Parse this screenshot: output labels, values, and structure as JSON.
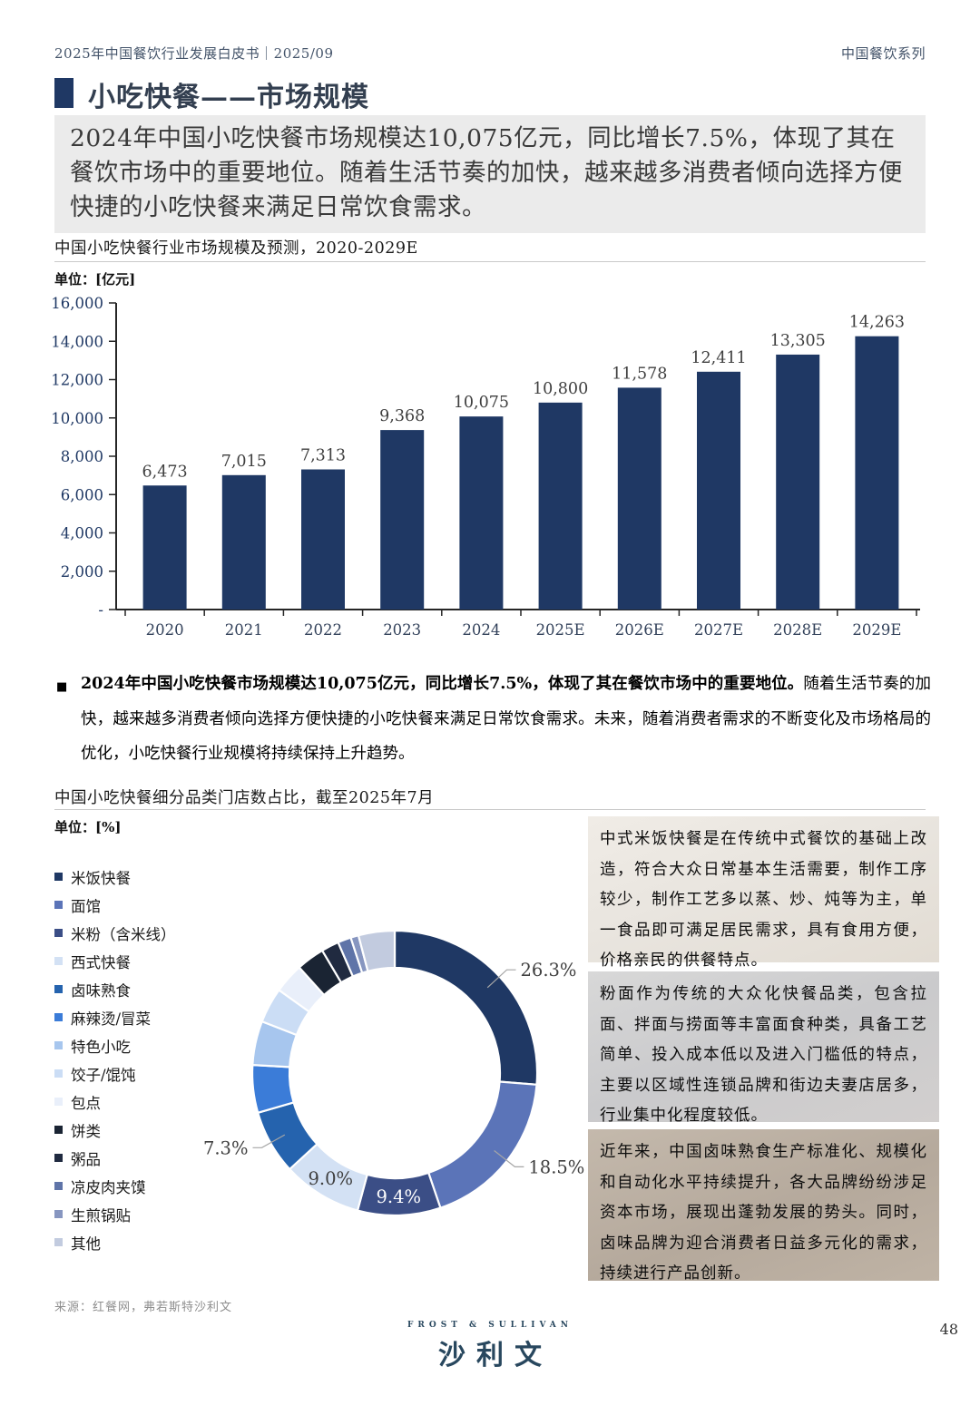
{
  "header": {
    "left": "2025年中国餐饮行业发展白皮书｜2025/09",
    "right": "中国餐饮系列"
  },
  "title": "小吃快餐——市场规模",
  "summary": "2024年中国小吃快餐市场规模达10,075亿元，同比增长7.5%，体现了其在餐饮市场中的重要地位。随着生活节奏的加快，越来越多消费者倾向选择方便快捷的小吃快餐来满足日常饮食需求。",
  "bullet": {
    "lead": "2024年中国小吃快餐市场规模达10,075亿元，同比增长7.5%，体现了其在餐饮市场中的重要地位。",
    "rest": "随着生活节奏的加快，越来越多消费者倾向选择方便快捷的小吃快餐来满足日常饮食需求。未来，随着消费者需求的不断变化及市场格局的优化，小吃快餐行业规模将持续保持上升趋势。"
  },
  "chart_data": [
    {
      "type": "bar",
      "title": "中国小吃快餐行业市场规模及预测，2020-2029E",
      "unit": "单位：[亿元]",
      "categories": [
        "2020",
        "2021",
        "2022",
        "2023",
        "2024",
        "2025E",
        "2026E",
        "2027E",
        "2028E",
        "2029E"
      ],
      "values": [
        6473,
        7015,
        7313,
        9368,
        10075,
        10800,
        11578,
        12411,
        13305,
        14263
      ],
      "value_labels": [
        "6,473",
        "7,015",
        "7,313",
        "9,368",
        "10,075",
        "10,800",
        "11,578",
        "12,411",
        "13,305",
        "14,263"
      ],
      "ylim": [
        0,
        16000
      ],
      "ytick_labels_top_down": [
        "16,000",
        "14,000",
        "12,000",
        "10,000",
        "8,000",
        "6,000",
        "4,000",
        "2,000",
        "-"
      ],
      "bar_color": "#1F3864",
      "grid": false,
      "legend": "none"
    },
    {
      "type": "pie",
      "donut": true,
      "title": "中国小吃快餐细分品类门店数占比，截至2025年7月",
      "unit": "单位：[%]",
      "segments": [
        {
          "name": "米饭快餐",
          "value": 26.3,
          "label": "26.3%",
          "color": "#1F3864",
          "label_style": "outside"
        },
        {
          "name": "面馆",
          "value": 18.5,
          "label": "18.5%",
          "color": "#5B74B8",
          "label_style": "outside"
        },
        {
          "name": "米粉（含米线）",
          "value": 9.4,
          "label": "9.4%",
          "color": "#3B4E86",
          "label_style": "inside-white"
        },
        {
          "name": "西式快餐",
          "value": 9.0,
          "label": "9.0%",
          "color": "#D3E1F4",
          "label_style": "inside-dark"
        },
        {
          "name": "卤味熟食",
          "value": 7.3,
          "label": "7.3%",
          "color": "#2563AE",
          "label_style": "outside"
        },
        {
          "name": "麻辣烫/冒菜",
          "value": 5.4,
          "color": "#3B7CD8"
        },
        {
          "name": "特色小吃",
          "value": 5.0,
          "color": "#A7C6EE"
        },
        {
          "name": "饺子/馄饨",
          "value": 4.0,
          "color": "#CBDDF5"
        },
        {
          "name": "包点",
          "value": 3.4,
          "color": "#E9EFFA"
        },
        {
          "name": "饼类",
          "value": 3.2,
          "color": "#1A2433"
        },
        {
          "name": "粥品",
          "value": 2.0,
          "color": "#202A40"
        },
        {
          "name": "凉皮肉夹馍",
          "value": 1.5,
          "color": "#5F74A8"
        },
        {
          "name": "生煎锅贴",
          "value": 0.9,
          "color": "#8796C0"
        },
        {
          "name": "其他",
          "value": 4.1,
          "color": "#C2CBDF"
        }
      ]
    }
  ],
  "info_boxes": [
    {
      "text": "中式米饭快餐是在传统中式餐饮的基础上改造，符合大众日常基本生活需要，制作工序较少，制作工艺多以蒸、炒、炖等为主，单一食品即可满足居民需求，具有食用方便，价格亲民的供餐特点。"
    },
    {
      "text": "粉面作为传统的大众化快餐品类，包含拉面、拌面与捞面等丰富面食种类，具备工艺简单、投入成本低以及进入门槛低的特点，主要以区域性连锁品牌和街边夫妻店居多，行业集中化程度较低。"
    },
    {
      "text": "近年来，中国卤味熟食生产标准化、规模化和自动化水平持续提升，各大品牌纷纷涉足资本市场，展现出蓬勃发展的势头。同时，卤味品牌为迎合消费者日益多元化的需求，持续进行产品创新。"
    }
  ],
  "footer": {
    "source": "来源：红餐网，弗若斯特沙利文",
    "page_number": "48",
    "logo_top": "FROST & SULLIVAN",
    "logo_main": "沙利文"
  },
  "colors": {
    "accent": "#1F3864",
    "heading": "#333F50",
    "summary_bg": "#EBEBEB",
    "axis": "#262626",
    "ytick_text": "#1F3864",
    "xtick_text": "#33425B",
    "value_text": "#3F3F3F",
    "leader_line": "#A6A6A6"
  }
}
